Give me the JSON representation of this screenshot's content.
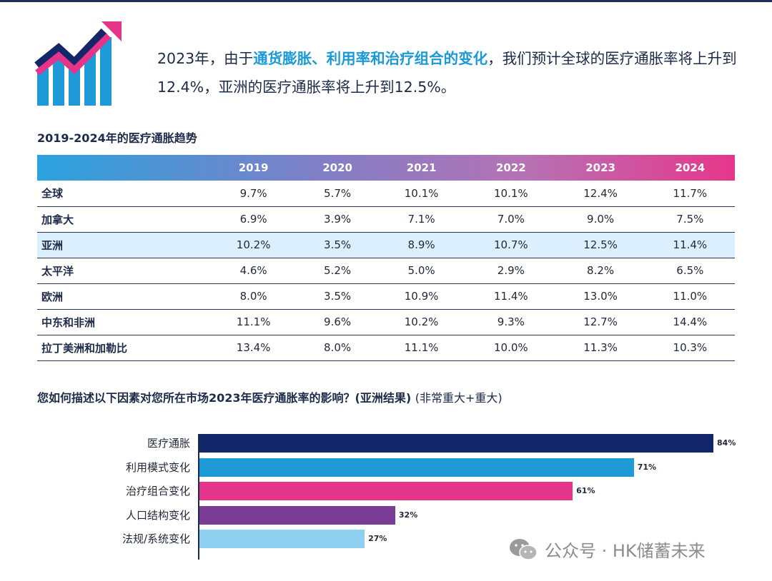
{
  "headline": {
    "part1": "2023年，由于",
    "highlight": "通货膨胀、利用率和治疗组合的变化",
    "part2": "，我们预计全球的医疗通胀率将上升到12.4%，亚洲的医疗通胀率将上升到12.5%。"
  },
  "table_title": "2019-2024年的医疗通胀趋势",
  "bars_title": {
    "main": "您如何描述以下因素对您所在市场2023年医疗通胀率的影响？(亚洲结果)",
    "suffix": "(非常重大+重大)"
  },
  "watermark": "公众号 · HK储蓄未来",
  "colors": {
    "navy": "#14266a",
    "blue": "#1e9ad6",
    "pink": "#e5348a",
    "purple": "#7b3c98",
    "light_blue": "#8fd0f0"
  },
  "chart_data": [
    {
      "type": "table",
      "title": "2019-2024年的医疗通胀趋势",
      "columns": [
        "2019",
        "2020",
        "2021",
        "2022",
        "2023",
        "2024"
      ],
      "rows": [
        {
          "region": "全球",
          "values": [
            "9.7%",
            "5.7%",
            "10.1%",
            "10.1%",
            "12.4%",
            "11.7%"
          ]
        },
        {
          "region": "加拿大",
          "values": [
            "6.9%",
            "3.9%",
            "7.1%",
            "7.0%",
            "9.0%",
            "7.5%"
          ]
        },
        {
          "region": "亚洲",
          "values": [
            "10.2%",
            "3.5%",
            "8.9%",
            "10.7%",
            "12.5%",
            "11.4%"
          ]
        },
        {
          "region": "太平洋",
          "values": [
            "4.6%",
            "5.2%",
            "5.0%",
            "2.9%",
            "8.2%",
            "6.5%"
          ]
        },
        {
          "region": "欧洲",
          "values": [
            "8.0%",
            "3.5%",
            "10.9%",
            "11.4%",
            "13.0%",
            "11.0%"
          ]
        },
        {
          "region": "中东和非洲",
          "values": [
            "11.1%",
            "9.6%",
            "10.2%",
            "9.3%",
            "12.7%",
            "14.4%"
          ]
        },
        {
          "region": "拉丁美洲和加勒比",
          "values": [
            "13.4%",
            "8.0%",
            "11.1%",
            "10.0%",
            "11.3%",
            "10.3%"
          ]
        }
      ]
    },
    {
      "type": "bar",
      "orientation": "horizontal",
      "title": "您如何描述以下因素对您所在市场2023年医疗通胀率的影响？(亚洲结果)(非常重大+重大)",
      "categories": [
        "医疗通胀",
        "利用模式变化",
        "治疗组合变化",
        "人口结构变化",
        "法规/系统变化"
      ],
      "values": [
        84,
        71,
        61,
        32,
        27
      ],
      "labels": [
        "84%",
        "71%",
        "61%",
        "32%",
        "27%"
      ],
      "xlim": [
        0,
        100
      ]
    }
  ]
}
